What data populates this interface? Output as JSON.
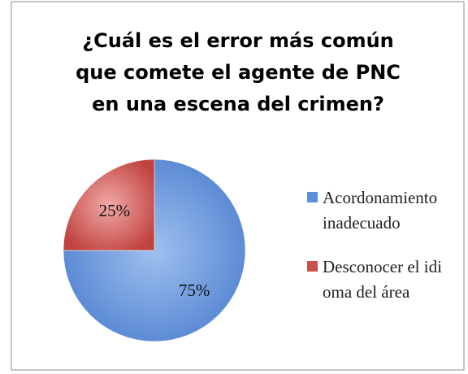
{
  "chart_data": {
    "type": "pie",
    "title": [
      "¿Cuál es el error más común",
      "que comete el agente de PNC",
      "en una escena del crimen?"
    ],
    "categories": [
      "Acordonamiento inadecuado",
      "Desconocer el idioma del área"
    ],
    "values": [
      75,
      25
    ],
    "value_labels": [
      "75%",
      "25%"
    ],
    "colors": [
      "#5b8fd9",
      "#c9504d"
    ],
    "legend": "right"
  }
}
